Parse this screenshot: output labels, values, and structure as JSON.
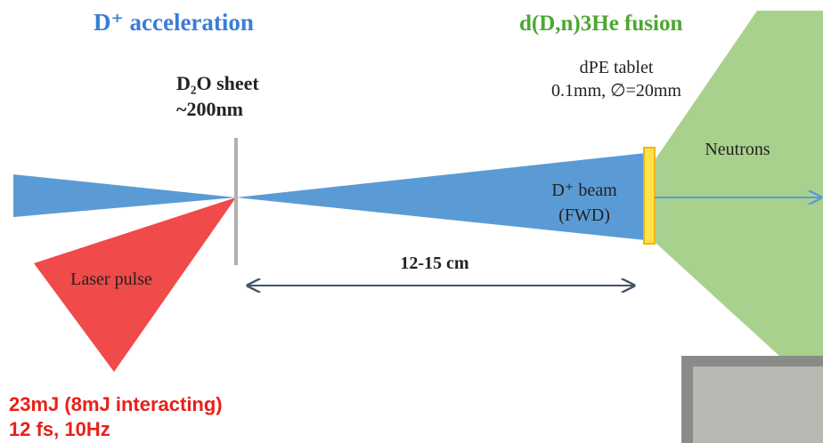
{
  "title_left": "D⁺ acceleration",
  "title_right": "d(D,n)3He fusion",
  "sheet": {
    "line1": "D₂O sheet",
    "line2": "~200nm"
  },
  "tablet": {
    "line1": "dPE tablet",
    "line2": "0.1mm, ∅=20mm"
  },
  "neutrons": "Neutrons",
  "beam": {
    "line1": "D⁺ beam",
    "line2": "(FWD)"
  },
  "distance": "12-15 cm",
  "laser": "Laser pulse",
  "laser_specs": {
    "line1": "23mJ (8mJ interacting)",
    "line2": "12 fs, 10Hz"
  }
}
